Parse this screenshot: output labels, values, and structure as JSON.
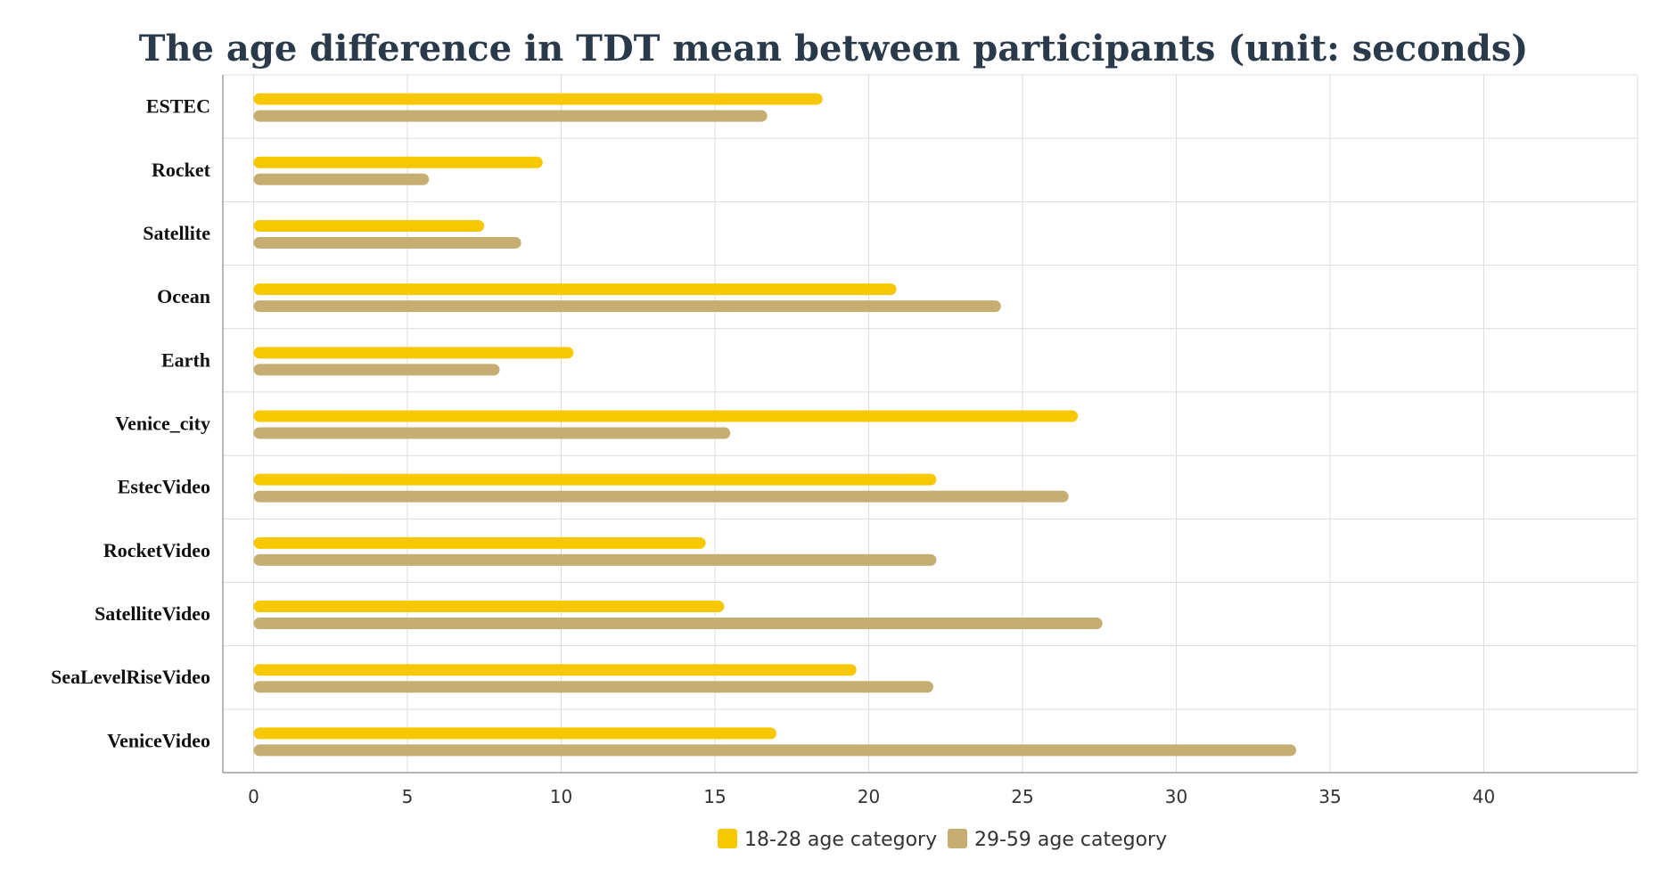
{
  "chart_data": {
    "type": "bar",
    "orientation": "horizontal",
    "title": "The age difference in TDT mean between participants (unit: seconds)",
    "xlabel": "",
    "ylabel": "",
    "categories": [
      "ESTEC",
      "Rocket",
      "Satellite",
      "Ocean",
      "Earth",
      "Venice_city",
      "EstecVideo",
      "RocketVideo",
      "SatelliteVideo",
      "SeaLevelRiseVideo",
      "VeniceVideo"
    ],
    "series": [
      {
        "name": "18-28 age category",
        "color": "#f7c800",
        "values": [
          18.5,
          9.4,
          7.5,
          20.9,
          10.4,
          26.8,
          22.2,
          14.7,
          15.3,
          19.6,
          17.0
        ]
      },
      {
        "name": "29-59 age category",
        "color": "#c6ae72",
        "values": [
          16.7,
          5.7,
          8.7,
          24.3,
          8.0,
          15.5,
          26.5,
          22.2,
          27.6,
          22.1,
          33.9
        ]
      }
    ],
    "xlim": [
      -1,
      45
    ],
    "xticks": [
      0,
      5,
      10,
      15,
      20,
      25,
      30,
      35,
      40
    ],
    "grid": true,
    "legend_position": "bottom"
  }
}
